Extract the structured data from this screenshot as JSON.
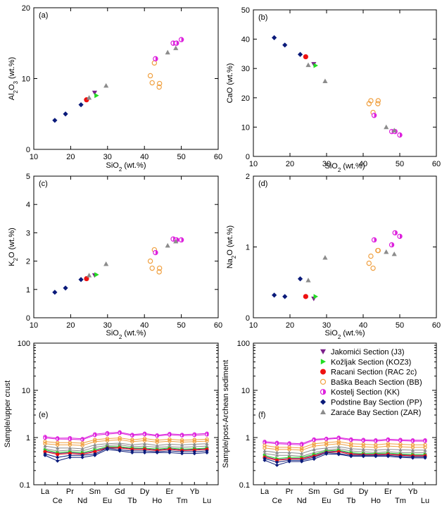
{
  "chart_data": [
    {
      "type": "scatter",
      "panel_label": "(a)",
      "xlabel": "SiO2 (wt.%)",
      "ylabel": "Al2O3 (wt.%)",
      "xlim": [
        10,
        60
      ],
      "ylim": [
        0,
        20
      ],
      "xticks": [
        "10",
        "20",
        "30",
        "40",
        "50",
        "60"
      ],
      "yticks": [
        "0",
        "10",
        "20"
      ],
      "series": [
        {
          "name": "Jakomići Section (J3)",
          "points": [
            [
              26.5,
              8.0
            ]
          ]
        },
        {
          "name": "Kožljak Section (KOZ3)",
          "points": [
            [
              27.0,
              7.6
            ]
          ]
        },
        {
          "name": "Racani Section (RAC 2c)",
          "points": [
            [
              24.3,
              7.0
            ]
          ]
        },
        {
          "name": "Baška Beach Section (BB)",
          "points": [
            [
              41.6,
              10.4
            ],
            [
              42.1,
              9.4
            ],
            [
              42.7,
              12.2
            ],
            [
              44.1,
              9.3
            ],
            [
              44.0,
              8.8
            ]
          ]
        },
        {
          "name": "Kostelj Section (KK)",
          "points": [
            [
              43.0,
              12.8
            ],
            [
              47.8,
              15.0
            ],
            [
              48.7,
              15.0
            ],
            [
              50.0,
              15.5
            ]
          ]
        },
        {
          "name": "Podstine Bay Section (PP)",
          "points": [
            [
              15.7,
              4.1
            ],
            [
              18.6,
              5.0
            ],
            [
              22.8,
              6.3
            ]
          ]
        },
        {
          "name": "Zaraće Bay Section (ZAR)",
          "points": [
            [
              25.0,
              7.3
            ],
            [
              29.6,
              9.0
            ],
            [
              46.3,
              13.7
            ],
            [
              48.5,
              14.3
            ]
          ]
        }
      ]
    },
    {
      "type": "scatter",
      "panel_label": "(b)",
      "xlabel": "SiO2 (wt.%)",
      "ylabel": "CaO (wt.%)",
      "xlim": [
        10,
        60
      ],
      "ylim": [
        0,
        50
      ],
      "xticks": [
        "10",
        "20",
        "30",
        "40",
        "50",
        "60"
      ],
      "yticks": [
        "0",
        "10",
        "20",
        "30",
        "40",
        "50"
      ],
      "series": [
        {
          "name": "Jakomići Section (J3)",
          "points": [
            [
              26.5,
              31.5
            ]
          ]
        },
        {
          "name": "Kožljak Section (KOZ3)",
          "points": [
            [
              27.0,
              31.0
            ]
          ]
        },
        {
          "name": "Racani Section (RAC 2c)",
          "points": [
            [
              24.3,
              34.0
            ]
          ]
        },
        {
          "name": "Baška Beach Section (BB)",
          "points": [
            [
              41.6,
              18.0
            ],
            [
              42.1,
              19.0
            ],
            [
              42.7,
              15.0
            ],
            [
              44.1,
              19.0
            ],
            [
              44.0,
              18.0
            ]
          ]
        },
        {
          "name": "Kostelj Section (KK)",
          "points": [
            [
              43.0,
              14.0
            ],
            [
              47.8,
              8.5
            ],
            [
              48.7,
              8.5
            ],
            [
              50.0,
              7.3
            ]
          ]
        },
        {
          "name": "Podstine Bay Section (PP)",
          "points": [
            [
              15.7,
              40.5
            ],
            [
              18.6,
              38.0
            ],
            [
              22.8,
              34.8
            ]
          ]
        },
        {
          "name": "Zaraće Bay Section (ZAR)",
          "points": [
            [
              25.0,
              31.2
            ],
            [
              29.6,
              25.7
            ],
            [
              46.3,
              10.0
            ],
            [
              48.5,
              8.9
            ]
          ]
        }
      ]
    },
    {
      "type": "scatter",
      "panel_label": "(c)",
      "xlabel": "SiO2 (wt.%)",
      "ylabel": "K2O (wt.%)",
      "xlim": [
        10,
        60
      ],
      "ylim": [
        0,
        5
      ],
      "xticks": [
        "10",
        "20",
        "30",
        "40",
        "50",
        "60"
      ],
      "yticks": [
        "0",
        "1",
        "2",
        "3",
        "4",
        "5"
      ],
      "series": [
        {
          "name": "Jakomići Section (J3)",
          "points": [
            [
              26.5,
              1.5
            ]
          ]
        },
        {
          "name": "Kožljak Section (KOZ3)",
          "points": [
            [
              27.0,
              1.52
            ]
          ]
        },
        {
          "name": "Racani Section (RAC 2c)",
          "points": [
            [
              24.3,
              1.38
            ]
          ]
        },
        {
          "name": "Baška Beach Section (BB)",
          "points": [
            [
              41.6,
              2.0
            ],
            [
              42.1,
              1.75
            ],
            [
              42.7,
              2.4
            ],
            [
              44.1,
              1.75
            ],
            [
              44.0,
              1.62
            ]
          ]
        },
        {
          "name": "Kostelj Section (KK)",
          "points": [
            [
              43.0,
              2.3
            ],
            [
              47.8,
              2.78
            ],
            [
              48.7,
              2.75
            ],
            [
              50.0,
              2.75
            ]
          ]
        },
        {
          "name": "Podstine Bay Section (PP)",
          "points": [
            [
              15.7,
              0.9
            ],
            [
              18.6,
              1.05
            ],
            [
              22.8,
              1.35
            ]
          ]
        },
        {
          "name": "Zaraće Bay Section (ZAR)",
          "points": [
            [
              25.0,
              1.5
            ],
            [
              29.6,
              1.9
            ],
            [
              46.3,
              2.55
            ],
            [
              48.5,
              2.7
            ]
          ]
        }
      ]
    },
    {
      "type": "scatter",
      "panel_label": "(d)",
      "xlabel": "SiO2 (wt.%)",
      "ylabel": "Na2O (wt.%)",
      "xlim": [
        10,
        60
      ],
      "ylim": [
        0,
        2
      ],
      "xticks": [
        "10",
        "20",
        "30",
        "40",
        "50",
        "60"
      ],
      "yticks": [
        "0",
        "1",
        "2"
      ],
      "series": [
        {
          "name": "Jakomići Section (J3)",
          "points": [
            [
              26.5,
              0.27
            ]
          ]
        },
        {
          "name": "Kožljak Section (KOZ3)",
          "points": [
            [
              27.0,
              0.3
            ]
          ]
        },
        {
          "name": "Racani Section (RAC 2c)",
          "points": [
            [
              24.3,
              0.3
            ]
          ]
        },
        {
          "name": "Baška Beach Section (BB)",
          "points": [
            [
              41.6,
              0.77
            ],
            [
              42.1,
              0.87
            ],
            [
              42.7,
              0.7
            ],
            [
              44.1,
              0.95
            ],
            [
              44.0,
              0.95
            ]
          ]
        },
        {
          "name": "Kostelj Section (KK)",
          "points": [
            [
              43.0,
              1.1
            ],
            [
              47.8,
              1.03
            ],
            [
              48.7,
              1.2
            ],
            [
              50.0,
              1.15
            ]
          ]
        },
        {
          "name": "Podstine Bay Section (PP)",
          "points": [
            [
              15.7,
              0.32
            ],
            [
              18.6,
              0.3
            ],
            [
              22.8,
              0.55
            ]
          ]
        },
        {
          "name": "Zaraće Bay Section (ZAR)",
          "points": [
            [
              25.0,
              0.53
            ],
            [
              29.6,
              0.85
            ],
            [
              46.3,
              0.93
            ],
            [
              48.5,
              0.9
            ]
          ]
        }
      ]
    },
    {
      "type": "line",
      "panel_label": "(e)",
      "ylabel": "Sample/upper crust",
      "yscale": "log",
      "ylim": [
        0.1,
        100
      ],
      "yticks": [
        "0.1",
        "1",
        "10",
        "100"
      ],
      "categories": [
        "La",
        "Ce",
        "Pr",
        "Nd",
        "Sm",
        "Eu",
        "Gd",
        "Tb",
        "Dy",
        "Ho",
        "Er",
        "Tm",
        "Yb",
        "Lu"
      ],
      "series": [
        {
          "name": "Kostelj Section (KK)",
          "values": [
            1.04,
            0.97,
            0.98,
            0.94,
            1.18,
            1.25,
            1.3,
            1.15,
            1.22,
            1.12,
            1.2,
            1.15,
            1.18,
            1.22
          ]
        },
        {
          "name": "Kostelj Section (KK)",
          "values": [
            0.98,
            0.93,
            0.92,
            0.9,
            1.12,
            1.18,
            1.24,
            1.1,
            1.16,
            1.08,
            1.14,
            1.1,
            1.12,
            1.15
          ]
        },
        {
          "name": "Baška Beach Section (BB)",
          "values": [
            0.82,
            0.78,
            0.78,
            0.76,
            0.9,
            0.95,
            0.98,
            0.9,
            0.95,
            0.88,
            0.92,
            0.88,
            0.9,
            0.92
          ]
        },
        {
          "name": "Baška Beach Section (BB)",
          "values": [
            0.74,
            0.7,
            0.7,
            0.68,
            0.82,
            0.86,
            0.9,
            0.82,
            0.86,
            0.8,
            0.84,
            0.8,
            0.82,
            0.84
          ]
        },
        {
          "name": "Zaraće Bay Section (ZAR)",
          "values": [
            0.66,
            0.6,
            0.6,
            0.58,
            0.7,
            0.74,
            0.76,
            0.7,
            0.74,
            0.68,
            0.72,
            0.7,
            0.72,
            0.74
          ]
        },
        {
          "name": "Zaraće Bay Section (ZAR)",
          "values": [
            0.58,
            0.52,
            0.54,
            0.52,
            0.62,
            0.68,
            0.7,
            0.64,
            0.66,
            0.62,
            0.64,
            0.62,
            0.64,
            0.66
          ]
        },
        {
          "name": "Jakomići Section (J3)",
          "values": [
            0.52,
            0.46,
            0.48,
            0.46,
            0.52,
            0.62,
            0.62,
            0.58,
            0.58,
            0.55,
            0.58,
            0.55,
            0.56,
            0.58
          ]
        },
        {
          "name": "Kožljak Section (KOZ3)",
          "values": [
            0.55,
            0.48,
            0.5,
            0.48,
            0.55,
            0.64,
            0.64,
            0.6,
            0.6,
            0.57,
            0.6,
            0.57,
            0.58,
            0.6
          ]
        },
        {
          "name": "Racani Section (RAC 2c)",
          "values": [
            0.5,
            0.44,
            0.46,
            0.44,
            0.5,
            0.6,
            0.6,
            0.56,
            0.56,
            0.53,
            0.56,
            0.53,
            0.54,
            0.56
          ]
        },
        {
          "name": "Podstine Bay Section (PP)",
          "values": [
            0.45,
            0.38,
            0.42,
            0.42,
            0.45,
            0.6,
            0.55,
            0.52,
            0.52,
            0.5,
            0.52,
            0.5,
            0.5,
            0.52
          ]
        },
        {
          "name": "Podstine Bay Section (PP)",
          "values": [
            0.42,
            0.32,
            0.38,
            0.38,
            0.42,
            0.56,
            0.52,
            0.48,
            0.48,
            0.48,
            0.48,
            0.46,
            0.46,
            0.48
          ]
        }
      ]
    },
    {
      "type": "line",
      "panel_label": "(f)",
      "ylabel": "Sample/post-Archean sediment",
      "yscale": "log",
      "ylim": [
        0.1,
        100
      ],
      "yticks": [
        "0.1",
        "1",
        "10",
        "100"
      ],
      "categories": [
        "La",
        "Ce",
        "Pr",
        "Nd",
        "Sm",
        "Eu",
        "Gd",
        "Tb",
        "Dy",
        "Ho",
        "Er",
        "Tm",
        "Yb",
        "Lu"
      ],
      "series": [
        {
          "name": "Kostelj Section (KK)",
          "values": [
            0.82,
            0.78,
            0.76,
            0.74,
            0.92,
            0.95,
            1.0,
            0.92,
            0.9,
            0.88,
            0.92,
            0.9,
            0.88,
            0.88
          ]
        },
        {
          "name": "Kostelj Section (KK)",
          "values": [
            0.78,
            0.74,
            0.72,
            0.7,
            0.88,
            0.92,
            0.96,
            0.88,
            0.86,
            0.84,
            0.88,
            0.86,
            0.84,
            0.84
          ]
        },
        {
          "name": "Baška Beach Section (BB)",
          "values": [
            0.68,
            0.62,
            0.62,
            0.6,
            0.74,
            0.78,
            0.82,
            0.74,
            0.72,
            0.7,
            0.74,
            0.72,
            0.7,
            0.7
          ]
        },
        {
          "name": "Baška Beach Section (BB)",
          "values": [
            0.6,
            0.56,
            0.56,
            0.54,
            0.66,
            0.7,
            0.74,
            0.66,
            0.64,
            0.62,
            0.66,
            0.64,
            0.62,
            0.62
          ]
        },
        {
          "name": "Zaraće Bay Section (ZAR)",
          "values": [
            0.52,
            0.48,
            0.48,
            0.46,
            0.56,
            0.6,
            0.64,
            0.58,
            0.56,
            0.54,
            0.56,
            0.55,
            0.54,
            0.54
          ]
        },
        {
          "name": "Zaraće Bay Section (ZAR)",
          "values": [
            0.46,
            0.42,
            0.42,
            0.4,
            0.48,
            0.54,
            0.58,
            0.52,
            0.5,
            0.48,
            0.5,
            0.48,
            0.48,
            0.48
          ]
        },
        {
          "name": "Jakomići Section (J3)",
          "values": [
            0.4,
            0.34,
            0.36,
            0.36,
            0.42,
            0.5,
            0.52,
            0.46,
            0.44,
            0.44,
            0.45,
            0.43,
            0.42,
            0.42
          ]
        },
        {
          "name": "Kožljak Section (KOZ3)",
          "values": [
            0.42,
            0.36,
            0.38,
            0.38,
            0.44,
            0.52,
            0.54,
            0.48,
            0.46,
            0.46,
            0.47,
            0.45,
            0.44,
            0.44
          ]
        },
        {
          "name": "Racani Section (RAC 2c)",
          "values": [
            0.38,
            0.33,
            0.35,
            0.35,
            0.4,
            0.48,
            0.5,
            0.44,
            0.43,
            0.43,
            0.44,
            0.42,
            0.41,
            0.41
          ]
        },
        {
          "name": "Podstine Bay Section (PP)",
          "values": [
            0.36,
            0.3,
            0.33,
            0.33,
            0.38,
            0.48,
            0.46,
            0.42,
            0.42,
            0.42,
            0.42,
            0.4,
            0.39,
            0.39
          ]
        },
        {
          "name": "Podstine Bay Section (PP)",
          "values": [
            0.33,
            0.26,
            0.31,
            0.31,
            0.35,
            0.45,
            0.44,
            0.4,
            0.4,
            0.4,
            0.4,
            0.38,
            0.37,
            0.37
          ]
        }
      ]
    }
  ],
  "legend": [
    {
      "label": "Jakomići Section (J3)",
      "marker": "tri-down",
      "color": "#7b1f8a"
    },
    {
      "label": "Kožljak Section (KOZ3)",
      "marker": "tri-right",
      "color": "#22dd22"
    },
    {
      "label": "Racani Section (RAC 2c)",
      "marker": "circle",
      "color": "#ee1111"
    },
    {
      "label": "Baška Beach Section (BB)",
      "marker": "open-circle",
      "color": "#f0a040"
    },
    {
      "label": "Kostelj Section (KK)",
      "marker": "half-circle",
      "color": "#dd22dd"
    },
    {
      "label": "Podstine Bay Section (PP)",
      "marker": "diamond",
      "color": "#0a1a7a"
    },
    {
      "label": "Zaraće Bay Section (ZAR)",
      "marker": "triangle-up",
      "color": "#8c8c8c"
    }
  ],
  "colors": {
    "J3": "#7b1f8a",
    "KOZ3": "#22dd22",
    "RAC": "#ee1111",
    "BB": "#f0a040",
    "KK": "#dd22dd",
    "PP": "#0a1a7a",
    "ZAR": "#8c8c8c"
  }
}
